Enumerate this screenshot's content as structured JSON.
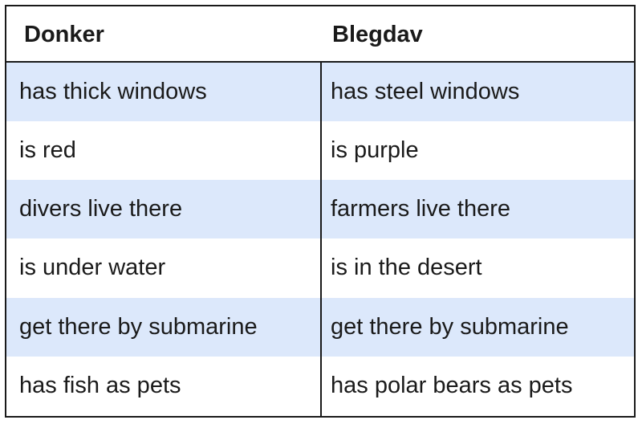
{
  "table": {
    "headers": [
      "Donker",
      "Blegdav"
    ],
    "rows": [
      [
        "has thick windows",
        "has steel windows"
      ],
      [
        "is red",
        "is purple"
      ],
      [
        "divers live there",
        "farmers live there"
      ],
      [
        "is under water",
        "is in the desert"
      ],
      [
        "get there by submarine",
        "get there by submarine"
      ],
      [
        "has fish as pets",
        "has polar bears as pets"
      ]
    ],
    "colors": {
      "border": "#1a1a1a",
      "shaded_row": "#dce8fb",
      "plain_row": "#ffffff"
    }
  }
}
